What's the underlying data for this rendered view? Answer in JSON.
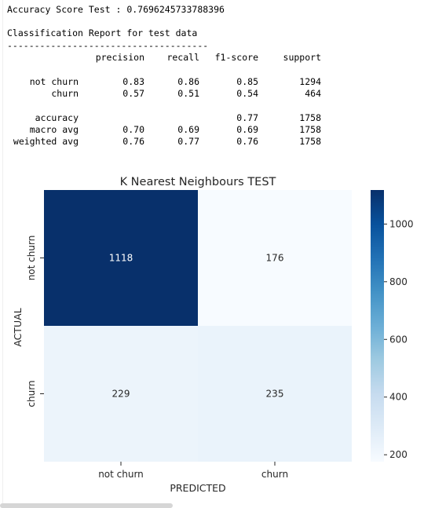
{
  "output": {
    "accuracy_line": "Accuracy Score Test : 0.7696245733788396",
    "report_title": "Classification Report for test data",
    "divider": "-------------------------------------",
    "report": {
      "columns": [
        "precision",
        "recall",
        "f1-score",
        "support"
      ],
      "rows": [
        {
          "label": "not churn",
          "values": [
            "0.83",
            "0.86",
            "0.85",
            "1294"
          ]
        },
        {
          "label": "churn",
          "values": [
            "0.57",
            "0.51",
            "0.54",
            "464"
          ]
        },
        {
          "label": "accuracy",
          "values": [
            "",
            "",
            "0.77",
            "1758"
          ]
        },
        {
          "label": "macro avg",
          "values": [
            "0.70",
            "0.69",
            "0.69",
            "1758"
          ]
        },
        {
          "label": "weighted avg",
          "values": [
            "0.76",
            "0.77",
            "0.76",
            "1758"
          ]
        }
      ]
    }
  },
  "chart_data": {
    "type": "heatmap",
    "title": "K Nearest Neighbours TEST",
    "xlabel": "PREDICTED",
    "ylabel": "ACTUAL",
    "x_categories": [
      "not churn",
      "churn"
    ],
    "y_categories": [
      "not churn",
      "churn"
    ],
    "values": [
      [
        1118,
        176
      ],
      [
        229,
        235
      ]
    ],
    "colormap": "Blues",
    "colorbar": {
      "min": 176,
      "max": 1118,
      "ticks": [
        200,
        400,
        600,
        800,
        1000
      ]
    },
    "colors": {
      "low": "#f7fbff",
      "high": "#08306b"
    }
  }
}
